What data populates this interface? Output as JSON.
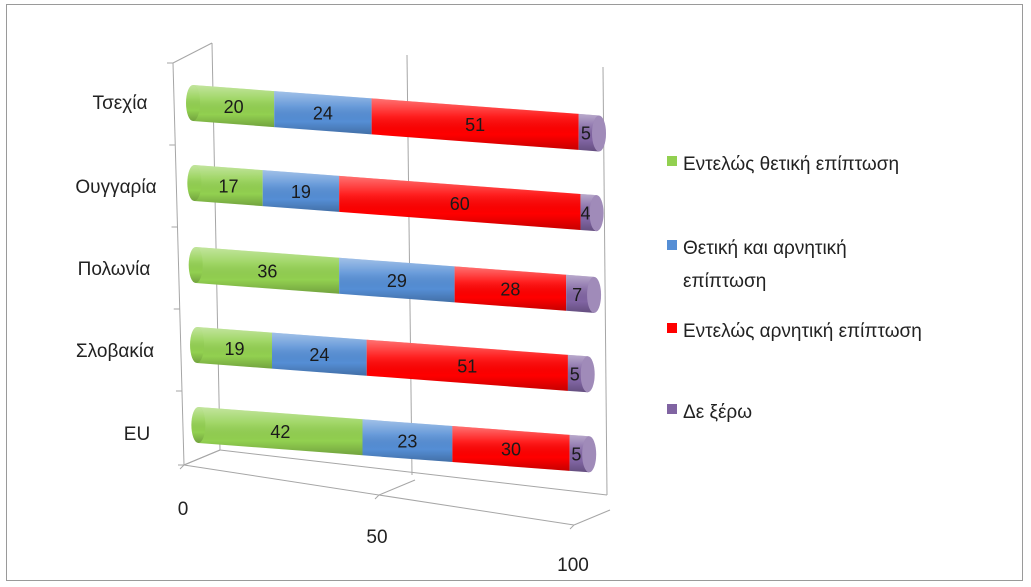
{
  "chart_data": {
    "type": "bar",
    "orientation": "horizontal",
    "stacked": true,
    "three_d": true,
    "categories": [
      "Τσεχία",
      "Ουγγαρία",
      "Πολωνία",
      "Σλοβακία",
      "EU"
    ],
    "series": [
      {
        "name": "Εντελώς θετική επίπτωση",
        "color": "#92d050",
        "values": [
          20,
          17,
          36,
          19,
          42
        ]
      },
      {
        "name": "Θετική και αρνητική επίπτωση",
        "color": "#558ed5",
        "values": [
          24,
          19,
          29,
          24,
          23
        ]
      },
      {
        "name": "Εντελώς αρνητική επίπτωση",
        "color": "#ff0000",
        "values": [
          51,
          60,
          28,
          51,
          30
        ]
      },
      {
        "name": "Δε ξέρω",
        "color": "#8064a2",
        "values": [
          5,
          4,
          7,
          5,
          5
        ]
      }
    ],
    "xlim": [
      0,
      100
    ],
    "x_ticks": [
      "0",
      "50",
      "100"
    ],
    "gridlines": true,
    "legend_position": "right"
  }
}
